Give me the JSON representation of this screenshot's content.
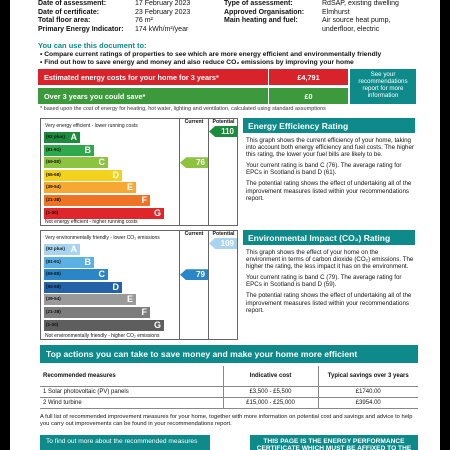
{
  "header": {
    "rows": [
      {
        "k1": "Date of assessment:",
        "v1": "17 February 2023",
        "k2": "Type of assessment:",
        "v2": "RdSAP, existing dwelling"
      },
      {
        "k1": "Date of certificate:",
        "v1": "23 February 2023",
        "k2": "Approved Organisation:",
        "v2": "Elmhurst"
      },
      {
        "k1": "Total floor area:",
        "v1": "76 m²",
        "k2": "Main heating and fuel:",
        "v2": "Air source heat pump,"
      },
      {
        "k1": "Primary Energy Indicator:",
        "v1": "174 kWh/m²/year",
        "k2": "",
        "v2": "underfloor, electric"
      }
    ]
  },
  "intro": {
    "title": "You can use this document to:",
    "bullets": [
      "Compare current ratings of properties to see which are more energy efficient and environmentally friendly",
      "Find out how to save energy and money and also reduce CO₂ emissions by improving your home"
    ]
  },
  "costs": {
    "row1_label": "Estimated energy costs for your home for 3 years*",
    "row1_value": "£4,791",
    "row2_label": "Over 3 years you could save*",
    "row2_value": "£0",
    "see_box": "See your recommendations report for more information",
    "note": "* based upon the cost of energy for heating, hot water, lighting and ventilation, calculated using standard assumptions"
  },
  "efficiency_chart": {
    "col_current": "Current",
    "col_potential": "Potential",
    "top_text": "Very energy efficient - lower running costs",
    "bottom_text": "Not energy efficient - higher running costs",
    "bands": [
      {
        "range": "(92 plus)",
        "letter": "A",
        "color": "#1a8c3c"
      },
      {
        "range": "(81-91)",
        "letter": "B",
        "color": "#2ea84a"
      },
      {
        "range": "(69-80)",
        "letter": "C",
        "color": "#8cc43f"
      },
      {
        "range": "(55-68)",
        "letter": "D",
        "color": "#f2d21c"
      },
      {
        "range": "(39-54)",
        "letter": "E",
        "color": "#f7a833"
      },
      {
        "range": "(21-38)",
        "letter": "F",
        "color": "#ee7324"
      },
      {
        "range": "(1-20)",
        "letter": "G",
        "color": "#e0262b"
      }
    ],
    "current_value": "76",
    "current_color": "#8cc43f",
    "potential_value": "110",
    "potential_color": "#1a8c3c"
  },
  "efficiency_info": {
    "heading": "Energy Efficiency Rating",
    "p1": "This graph shows the current efficiency of your home, taking into account both energy efficiency and fuel costs. The higher this rating, the lower your fuel bills are likely to be.",
    "p2": "Your current rating is band C (76). The average rating for EPCs in Scotland is band D (61).",
    "p3": "The potential rating shows the effect of undertaking all of the improvement measures listed within your recommendations report."
  },
  "impact_chart": {
    "col_current": "Current",
    "col_potential": "Potential",
    "top_text": "Very environmentally friendly - lower CO₂ emissions",
    "bottom_text": "Not environmentally friendly - higher CO₂ emissions",
    "bands": [
      {
        "range": "(92 plus)",
        "letter": "A",
        "color": "#a9d4ef"
      },
      {
        "range": "(81-91)",
        "letter": "B",
        "color": "#5cb1e3"
      },
      {
        "range": "(69-80)",
        "letter": "C",
        "color": "#2a86c7"
      },
      {
        "range": "(55-68)",
        "letter": "D",
        "color": "#2462a8"
      },
      {
        "range": "(39-54)",
        "letter": "E",
        "color": "#9a9a9a"
      },
      {
        "range": "(21-38)",
        "letter": "F",
        "color": "#7d7d7d"
      },
      {
        "range": "(1-20)",
        "letter": "G",
        "color": "#5e5e5e"
      }
    ],
    "current_value": "79",
    "current_color": "#2a86c7",
    "potential_value": "109",
    "potential_color": "#a9d4ef"
  },
  "impact_info": {
    "heading": "Environmental Impact (CO₂) Rating",
    "p1": "This graph shows the effect of your home on the environment in terms of carbon dioxide (CO₂) emissions. The higher the rating, the less impact it has on the environment.",
    "p2": "Your current rating is band C (79). The average rating for EPCs in Scotland is band D (59).",
    "p3": "The potential rating shows the effect of undertaking all of the improvement measures listed within your recommendations report."
  },
  "actions": {
    "heading": "Top actions you can take to save money and make your home more efficient",
    "columns": [
      "Recommended measures",
      "Indicative cost",
      "Typical savings over 3 years"
    ],
    "rows": [
      {
        "measure": "1 Solar photovoltaic (PV) panels",
        "cost": "£3,500 - £5,500",
        "saving": "£1740.00"
      },
      {
        "measure": "2 Wind turbine",
        "cost": "£15,000 - £25,000",
        "saving": "£3954.00"
      }
    ],
    "full_list": "A full list of recommended improvement measures for your home, together with more information on potential cost and savings and advice to help you carry out improvements can be found in your recommendations report.",
    "find_out": "To find out more about the recommended measures",
    "banner": "THIS PAGE IS THE ENERGY PERFORMANCE CERTIFICATE WHICH MUST BE AFFIXED TO THE"
  }
}
